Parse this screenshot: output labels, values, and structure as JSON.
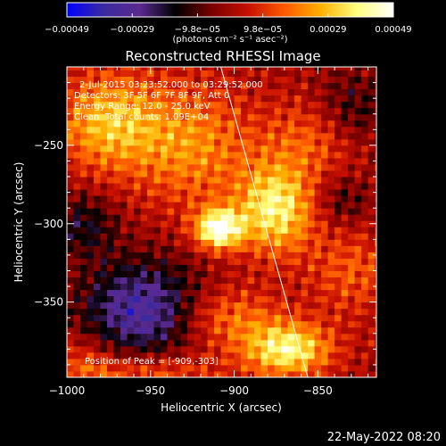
{
  "chart_data": {
    "type": "heatmap",
    "title": "Reconstructed RHESSI Image",
    "xlabel": "Heliocentric X (arcsec)",
    "ylabel": "Heliocentric Y (arcsec)",
    "xlim": [
      -1000,
      -815
    ],
    "ylim": [
      -398,
      -200
    ],
    "x_ticks": [
      "−1000",
      "−950",
      "−900",
      "−850"
    ],
    "x_tick_values": [
      -1000,
      -950,
      -900,
      -850
    ],
    "y_ticks": [
      "−250",
      "−300",
      "−350"
    ],
    "y_tick_values": [
      -250,
      -300,
      -350
    ],
    "colorbar": {
      "unit_label": "(photons cm⁻² s⁻¹ asec⁻²)",
      "tick_labels": [
        "−0.00049",
        "−0.00029",
        "−9.8e−05",
        "9.8e−05",
        "0.00029",
        "0.00049"
      ],
      "min": -0.00049,
      "max": 0.00049,
      "colormap": [
        "#0000ff",
        "#3a2aa0",
        "#5a2a90",
        "#000000",
        "#7a0000",
        "#c81000",
        "#ff5a00",
        "#ffb000",
        "#ffff80",
        "#ffffff"
      ]
    },
    "annotations": [
      "2-Jul-2015 03:23:52.000 to 03:29:52.000",
      "Detectors: 3F 5F 6F 7F 8F 9F, Att 0",
      "Energy Range: 12.0 - 25.0 keV",
      "Clean",
      "Total counts: 1.09E+04"
    ],
    "peak_label": "Position of Peak = [-909,-303]",
    "peak_position": [
      -909,
      -303
    ],
    "limb_line": [
      [
        -908,
        -200
      ],
      [
        -856,
        -398
      ]
    ],
    "sources": [
      {
        "x": -909,
        "y": -303,
        "sx": 10,
        "sy": 9,
        "amp": 1.0
      },
      {
        "x": -875,
        "y": -290,
        "sx": 16,
        "sy": 20,
        "amp": 0.78
      },
      {
        "x": -868,
        "y": -380,
        "sx": 18,
        "sy": 12,
        "amp": 0.8
      },
      {
        "x": -975,
        "y": -235,
        "sx": 22,
        "sy": 22,
        "amp": 0.6
      },
      {
        "x": -925,
        "y": -250,
        "sx": 25,
        "sy": 28,
        "amp": 0.45
      },
      {
        "x": -850,
        "y": -245,
        "sx": 22,
        "sy": 18,
        "amp": 0.35
      },
      {
        "x": -830,
        "y": -330,
        "sx": 18,
        "sy": 20,
        "amp": 0.3
      },
      {
        "x": -905,
        "y": -360,
        "sx": 22,
        "sy": 14,
        "amp": 0.4
      },
      {
        "x": -950,
        "y": -395,
        "sx": 30,
        "sy": 10,
        "amp": 0.35
      },
      {
        "x": -990,
        "y": -390,
        "sx": 14,
        "sy": 14,
        "amp": 0.25
      }
    ],
    "negative_regions": [
      {
        "x": -955,
        "y": -355,
        "sx": 25,
        "sy": 22,
        "amp": 0.7
      },
      {
        "x": -990,
        "y": -300,
        "sx": 14,
        "sy": 14,
        "amp": 0.35
      },
      {
        "x": -830,
        "y": -230,
        "sx": 16,
        "sy": 18,
        "amp": 0.35
      },
      {
        "x": -835,
        "y": -285,
        "sx": 12,
        "sy": 12,
        "amp": 0.25
      }
    ]
  },
  "timestamp": "22-May-2022 08:20"
}
